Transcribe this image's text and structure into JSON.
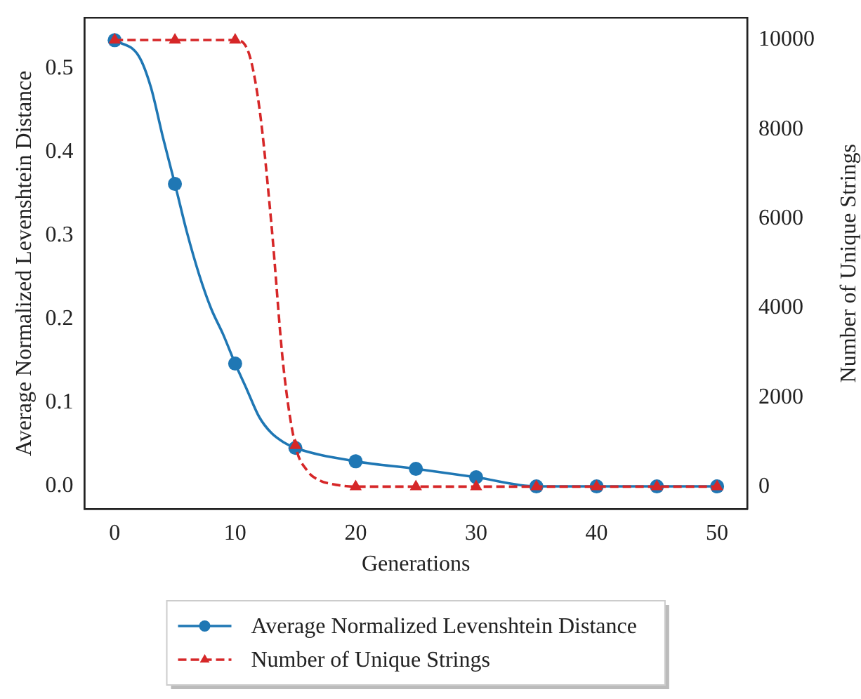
{
  "chart_data": {
    "type": "line",
    "xlabel": "Generations",
    "ylabel": "Average Normalized Levenshtein Distance",
    "y2label": "Number of Unique Strings",
    "xlim": [
      -2.5,
      52.5
    ],
    "xticks": [
      0,
      10,
      20,
      30,
      40,
      50
    ],
    "ylim": [
      -0.027,
      0.561
    ],
    "yticks": [
      {
        "value": 0,
        "label": "0.0"
      },
      {
        "value": 0.1,
        "label": "0.1"
      },
      {
        "value": 0.2,
        "label": "0.2"
      },
      {
        "value": 0.3,
        "label": "0.3"
      },
      {
        "value": 0.4,
        "label": "0.4"
      },
      {
        "value": 0.5,
        "label": "0.5"
      }
    ],
    "y2lim": [
      -500,
      10500
    ],
    "y2ticks": [
      0,
      2000,
      4000,
      6000,
      8000,
      10000
    ],
    "grid": false,
    "legend": "bottom",
    "series": [
      {
        "name": "Average Normalized Levenshtein Distance",
        "color": "#1f77b4",
        "marker": "circle",
        "line_style": "solid",
        "x": [
          0,
          2,
          3,
          4,
          5,
          6,
          7,
          8,
          9,
          10,
          11,
          12,
          13,
          14,
          15,
          20,
          25,
          30,
          35,
          40,
          45,
          50
        ],
        "values": [
          0.534,
          0.515,
          0.478,
          0.418,
          0.362,
          0.304,
          0.254,
          0.213,
          0.182,
          0.147,
          0.115,
          0.083,
          0.064,
          0.053,
          0.046,
          0.03,
          0.021,
          0.011,
          0,
          0,
          0,
          0
        ]
      },
      {
        "name": "Number of Unique Strings",
        "color": "#d62728",
        "marker": "triangle",
        "line_style": "dashed",
        "axis": "y2",
        "x": [
          0,
          5,
          10,
          11,
          12,
          13,
          14,
          15,
          16,
          17,
          18,
          20,
          25,
          30,
          35,
          40,
          45,
          50
        ],
        "values": [
          10000,
          10000,
          10000,
          9800,
          8500,
          5900,
          2700,
          920,
          350,
          140,
          60,
          0,
          0,
          0,
          0,
          0,
          0,
          0
        ]
      }
    ]
  }
}
